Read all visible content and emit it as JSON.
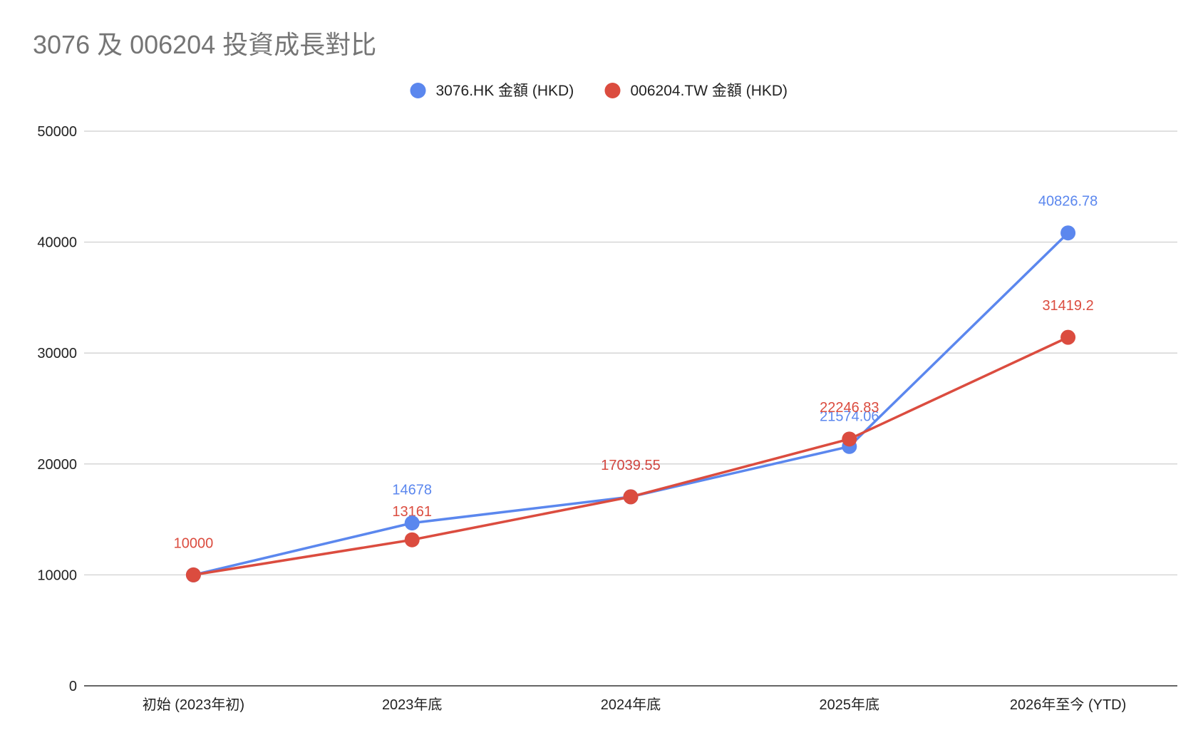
{
  "chart_data": {
    "type": "line",
    "title": "3076 及 006204 投資成長對比",
    "categories": [
      "初始 (2023年初)",
      "2023年底",
      "2024年底",
      "2025年底",
      "2026年至今 (YTD)"
    ],
    "series": [
      {
        "name": "3076.HK 金額 (HKD)",
        "color": "#5b87ee",
        "values": [
          10000,
          14678,
          17039.55,
          21574.06,
          40826.78
        ],
        "labels": [
          "",
          "14678",
          "17039.55",
          "21574.06",
          "40826.78"
        ]
      },
      {
        "name": "006204.TW 金額 (HKD)",
        "color": "#db4c3f",
        "values": [
          10000,
          13161,
          17039.55,
          22246.83,
          31419.2
        ],
        "labels": [
          "10000",
          "13161",
          "17039.55",
          "22246.83",
          "31419.2"
        ]
      }
    ],
    "ylim": [
      0,
      50000
    ],
    "yticks": [
      0,
      10000,
      20000,
      30000,
      40000,
      50000
    ],
    "xlabel": "",
    "ylabel": "",
    "grid": true,
    "legend_position": "top"
  }
}
